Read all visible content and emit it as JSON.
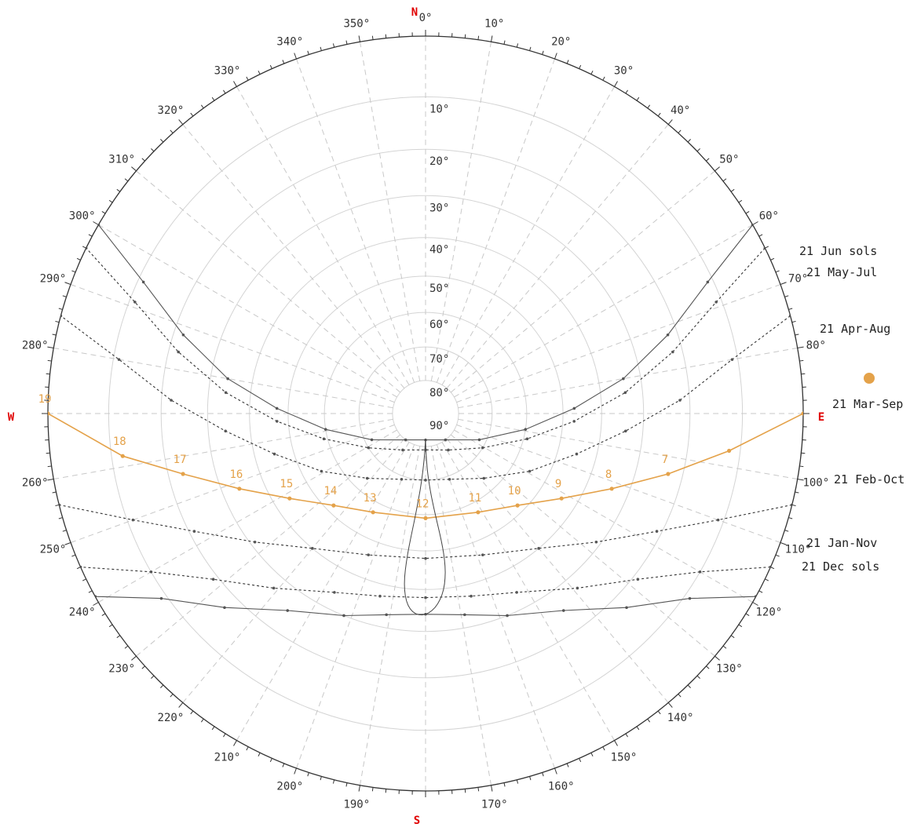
{
  "chart_data": {
    "type": "sun-path-stereographic",
    "cardinals": {
      "north": "N",
      "east": "E",
      "south": "S",
      "west": "W"
    },
    "azimuth_ticks_deg": [
      0,
      10,
      20,
      30,
      40,
      50,
      60,
      70,
      80,
      100,
      110,
      120,
      130,
      140,
      150,
      160,
      170,
      190,
      200,
      210,
      220,
      230,
      240,
      250,
      260,
      280,
      290,
      300,
      310,
      320,
      330,
      340,
      350
    ],
    "altitude_ticks_deg": [
      10,
      20,
      30,
      40,
      50,
      60,
      70,
      80,
      90
    ],
    "grid": true,
    "colors": {
      "current_day": "#e4a24a",
      "solstice": "#555555",
      "monthly": "#333333",
      "analemma": "#444444",
      "cardinal": "#e00000"
    },
    "series": [
      {
        "name": "21 Jun  sols",
        "style": "solid",
        "points": [
          [
            60,
            0
          ],
          [
            65,
            11
          ],
          [
            72,
            22
          ],
          [
            80,
            34
          ],
          [
            88,
            47
          ],
          [
            99,
            60
          ],
          [
            116,
            72
          ],
          [
            143,
            80
          ],
          [
            180,
            82
          ],
          [
            217,
            80
          ],
          [
            244,
            72
          ],
          [
            261,
            60
          ],
          [
            272,
            47
          ],
          [
            280,
            34
          ],
          [
            288,
            22
          ],
          [
            295,
            11
          ],
          [
            300,
            0
          ]
        ]
      },
      {
        "name": "21 May-Jul",
        "style": "dotted",
        "points": [
          [
            64,
            0
          ],
          [
            69,
            11
          ],
          [
            76,
            22
          ],
          [
            84,
            34
          ],
          [
            93,
            47
          ],
          [
            104,
            59
          ],
          [
            121,
            70
          ],
          [
            148,
            77
          ],
          [
            180,
            79
          ],
          [
            212,
            77
          ],
          [
            239,
            70
          ],
          [
            256,
            59
          ],
          [
            267,
            47
          ],
          [
            276,
            34
          ],
          [
            284,
            22
          ],
          [
            291,
            11
          ],
          [
            296,
            0
          ]
        ]
      },
      {
        "name": "21 Apr-Aug",
        "style": "dotted",
        "points": [
          [
            75,
            0
          ],
          [
            80,
            11
          ],
          [
            87,
            22
          ],
          [
            95,
            34
          ],
          [
            105,
            45
          ],
          [
            119,
            55
          ],
          [
            138,
            64
          ],
          [
            160,
            69
          ],
          [
            180,
            70
          ],
          [
            200,
            69
          ],
          [
            222,
            64
          ],
          [
            241,
            55
          ],
          [
            255,
            45
          ],
          [
            265,
            34
          ],
          [
            273,
            22
          ],
          [
            280,
            11
          ],
          [
            285,
            0
          ]
        ]
      },
      {
        "name": "21 Mar-Sep",
        "current": true,
        "style": "solid",
        "hours": [
          19,
          18,
          17,
          16,
          15,
          14,
          13,
          12,
          11,
          10,
          9,
          8,
          7
        ],
        "points": [
          [
            270,
            0
          ],
          [
            262,
            12
          ],
          [
            256,
            23
          ],
          [
            248,
            34
          ],
          [
            238,
            44
          ],
          [
            225,
            52
          ],
          [
            208,
            57
          ],
          [
            180,
            59
          ],
          [
            152,
            57
          ],
          [
            135,
            52
          ],
          [
            122,
            44
          ],
          [
            112,
            34
          ],
          [
            104,
            23
          ],
          [
            97,
            12
          ],
          [
            90,
            0
          ]
        ]
      },
      {
        "name": "21 Feb-Oct",
        "style": "dotted",
        "points": [
          [
            104,
            0
          ],
          [
            110,
            11
          ],
          [
            117,
            21
          ],
          [
            127,
            31
          ],
          [
            140,
            40
          ],
          [
            158,
            46
          ],
          [
            180,
            48
          ],
          [
            202,
            46
          ],
          [
            220,
            40
          ],
          [
            233,
            31
          ],
          [
            243,
            21
          ],
          [
            250,
            11
          ],
          [
            256,
            0
          ]
        ]
      },
      {
        "name": "21 Jan-Nov",
        "style": "dotted",
        "points": [
          [
            114,
            0
          ],
          [
            120,
            10
          ],
          [
            128,
            19
          ],
          [
            139,
            27
          ],
          [
            153,
            34
          ],
          [
            166,
            37
          ],
          [
            180,
            38
          ],
          [
            194,
            37
          ],
          [
            207,
            34
          ],
          [
            221,
            27
          ],
          [
            232,
            19
          ],
          [
            240,
            10
          ],
          [
            246,
            0
          ]
        ]
      },
      {
        "name": "21 Dec  sols",
        "style": "solid",
        "points": [
          [
            119,
            0
          ],
          [
            125,
            9
          ],
          [
            134,
            17
          ],
          [
            145,
            25
          ],
          [
            158,
            30
          ],
          [
            169,
            33
          ],
          [
            180,
            34
          ],
          [
            191,
            33
          ],
          [
            202,
            30
          ],
          [
            215,
            25
          ],
          [
            226,
            17
          ],
          [
            235,
            9
          ],
          [
            241,
            0
          ]
        ]
      }
    ],
    "analemma_hour": 12,
    "current_sun_marker": "orange dot"
  }
}
